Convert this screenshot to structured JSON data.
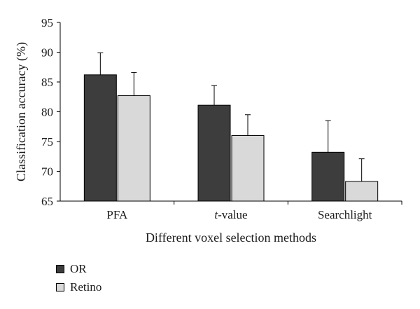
{
  "chart_data": {
    "type": "bar",
    "categories": [
      "PFA",
      "t-value",
      "Searchlight"
    ],
    "category_parts": [
      {
        "italic": "",
        "rest": "PFA"
      },
      {
        "italic": "t",
        "rest": "-value"
      },
      {
        "italic": "",
        "rest": "Searchlight"
      }
    ],
    "series": [
      {
        "name": "OR",
        "color": "#3d3d3d",
        "values": [
          86.2,
          81.1,
          73.2
        ],
        "errors": [
          3.7,
          3.3,
          5.3
        ]
      },
      {
        "name": "Retino",
        "color": "#d9d9d9",
        "values": [
          82.7,
          76.0,
          68.3
        ],
        "errors": [
          3.9,
          3.5,
          3.8
        ]
      }
    ],
    "xlabel": "Different voxel selection methods",
    "ylabel": "Classification accuracy (%)",
    "ylim": [
      65,
      95
    ],
    "yticks": [
      65,
      70,
      75,
      80,
      85,
      90,
      95
    ],
    "grid": false,
    "legend_position": "bottom-left"
  }
}
